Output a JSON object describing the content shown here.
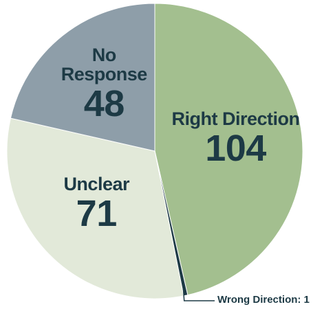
{
  "chart_data": {
    "type": "pie",
    "categories": [
      "Right Direction",
      "Wrong Direction",
      "Unclear",
      "No Response"
    ],
    "values": [
      104,
      1,
      71,
      48
    ],
    "value_labels": [
      "104",
      ": 1",
      "71",
      "48"
    ],
    "colors": [
      "#a3bf8f",
      "#1d3a45",
      "#e2e9d9",
      "#8e9ea9"
    ],
    "start_angle": 0,
    "direction": "clockwise"
  }
}
